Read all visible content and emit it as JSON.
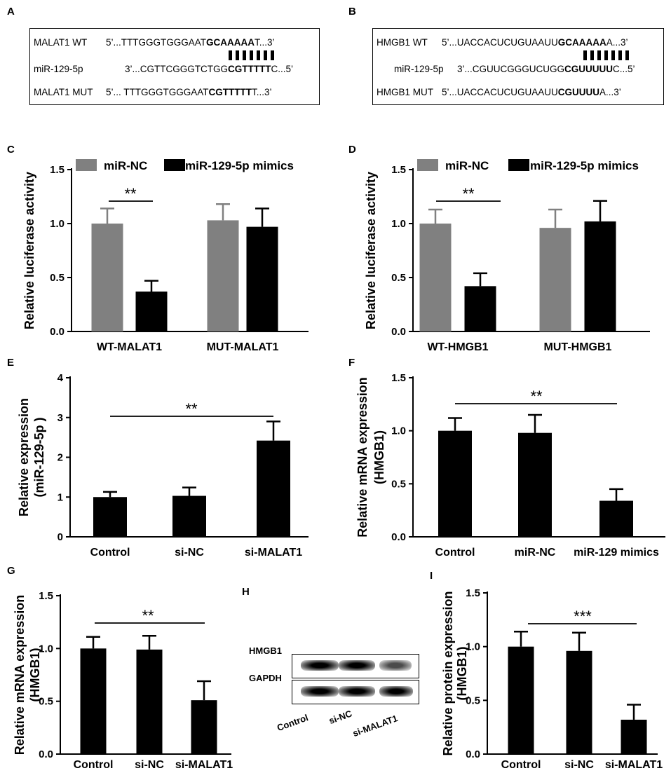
{
  "panels": {
    "A": {
      "letter": "A",
      "rows": [
        {
          "name": "MALAT1 WT",
          "prefix": "5’...TTTGGGTGGGAAT",
          "bold": "GCAAAAA",
          "suffix": "T...3’"
        },
        {
          "name": "miR-129-5p",
          "prefix": "3’...CGTTCGGGTCTGG",
          "bold": "CGTTTTT",
          "suffix": "C...5’"
        },
        {
          "name": "MALAT1 MUT",
          "prefix": "5’... TTTGGGTGGGAAT",
          "bold": "CGTTTTT",
          "suffix": "T...3’"
        }
      ]
    },
    "B": {
      "letter": "B",
      "rows": [
        {
          "name": "HMGB1 WT",
          "prefix": "5’...UACCACUCUGUAAUU",
          "bold": "GCAAAAA",
          "suffix": "A...3’"
        },
        {
          "name": "miR-129-5p",
          "prefix": "3’...CGUUCGGGUCUGG",
          "bold": "CGUUUUU",
          "suffix": "C...5’"
        },
        {
          "name": "HMGB1 MUT",
          "prefix": "5’...UACCACUCUGUAAUU",
          "bold": "CGUUUU",
          "suffix": "A...3’"
        }
      ]
    },
    "C": {
      "letter": "C"
    },
    "D": {
      "letter": "D"
    },
    "E": {
      "letter": "E"
    },
    "F": {
      "letter": "F"
    },
    "G": {
      "letter": "G"
    },
    "H": {
      "letter": "H"
    },
    "I": {
      "letter": "I"
    }
  },
  "colors": {
    "nc": "#808080",
    "mimic": "#000000"
  },
  "western": {
    "bands": [
      "HMGB1",
      "GAPDH"
    ],
    "lanes": [
      "Control",
      "si-NC",
      "si-MALAT1"
    ],
    "hmgb1_intensity": [
      1.0,
      1.0,
      0.55
    ],
    "gapdh_intensity": [
      1.0,
      1.0,
      1.0
    ]
  },
  "chart_data": [
    {
      "id": "C",
      "type": "bar",
      "categories": [
        "WT-MALAT1",
        "MUT-MALAT1"
      ],
      "series": [
        {
          "name": "miR-NC",
          "values": [
            1.0,
            1.03
          ],
          "errors": [
            0.14,
            0.15
          ]
        },
        {
          "name": "miR-129-5p mimics",
          "values": [
            0.37,
            0.97
          ],
          "errors": [
            0.1,
            0.17
          ]
        }
      ],
      "title": "",
      "xlabel": "",
      "ylabel": "Relative luciferase activity",
      "ylim": [
        0,
        1.5
      ],
      "yticks": [
        "0.0",
        "0.5",
        "1.0",
        "1.5"
      ],
      "legend": [
        "miR-NC",
        "miR-129-5p mimics"
      ],
      "significance": "**"
    },
    {
      "id": "D",
      "type": "bar",
      "categories": [
        "WT-HMGB1",
        "MUT-HMGB1"
      ],
      "series": [
        {
          "name": "miR-NC",
          "values": [
            1.0,
            0.96
          ],
          "errors": [
            0.13,
            0.17
          ]
        },
        {
          "name": "miR-129-5p mimics",
          "values": [
            0.42,
            1.02
          ],
          "errors": [
            0.12,
            0.19
          ]
        }
      ],
      "title": "",
      "xlabel": "",
      "ylabel": "Relative luciferase activity",
      "ylim": [
        0,
        1.5
      ],
      "yticks": [
        "0.0",
        "0.5",
        "1.0",
        "1.5"
      ],
      "legend": [
        "miR-NC",
        "miR-129-5p mimics"
      ],
      "significance": "**"
    },
    {
      "id": "E",
      "type": "bar",
      "categories": [
        "Control",
        "si-NC",
        "si-MALAT1"
      ],
      "series": [
        {
          "name": "",
          "values": [
            1.0,
            1.03,
            2.42
          ],
          "errors": [
            0.13,
            0.21,
            0.48
          ]
        }
      ],
      "title": "",
      "xlabel": "",
      "ylabel": "Relative expression",
      "ylabel2": "(miR-129-5p )",
      "ylim": [
        0,
        4
      ],
      "yticks": [
        "0",
        "1",
        "2",
        "3",
        "4"
      ],
      "significance": "**"
    },
    {
      "id": "F",
      "type": "bar",
      "categories": [
        "Control",
        "miR-NC",
        "miR-129 mimics"
      ],
      "series": [
        {
          "name": "",
          "values": [
            1.0,
            0.98,
            0.34
          ],
          "errors": [
            0.12,
            0.17,
            0.11
          ]
        }
      ],
      "title": "",
      "xlabel": "",
      "ylabel": "Relative mRNA  expression",
      "ylabel2": "(HMGB1)",
      "ylim": [
        0,
        1.5
      ],
      "yticks": [
        "0.0",
        "0.5",
        "1.0",
        "1.5"
      ],
      "significance": "**"
    },
    {
      "id": "G",
      "type": "bar",
      "categories": [
        "Control",
        "si-NC",
        "si-MALAT1"
      ],
      "series": [
        {
          "name": "",
          "values": [
            1.0,
            0.99,
            0.51
          ],
          "errors": [
            0.11,
            0.13,
            0.18
          ]
        }
      ],
      "title": "",
      "xlabel": "",
      "ylabel": "Relative mRNA  expression",
      "ylabel2": "(HMGB1)",
      "ylim": [
        0,
        1.5
      ],
      "yticks": [
        "0.0",
        "0.5",
        "1.0",
        "1.5"
      ],
      "significance": "**"
    },
    {
      "id": "I",
      "type": "bar",
      "categories": [
        "Control",
        "si-NC",
        "si-MALAT1"
      ],
      "series": [
        {
          "name": "",
          "values": [
            1.0,
            0.96,
            0.32
          ],
          "errors": [
            0.14,
            0.17,
            0.14
          ]
        }
      ],
      "title": "",
      "xlabel": "",
      "ylabel": "Relative protein  expression",
      "ylabel2": "(HMGB1)",
      "ylim": [
        0,
        1.5
      ],
      "yticks": [
        "0.0",
        "0.5",
        "1.0",
        "1.5"
      ],
      "significance": "***"
    }
  ]
}
